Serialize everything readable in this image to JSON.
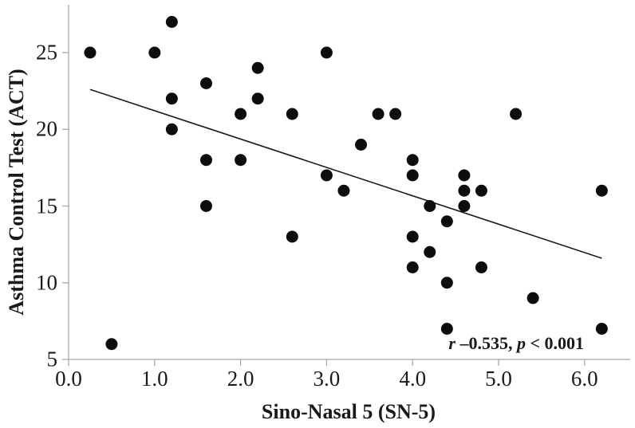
{
  "chart_data": {
    "type": "scatter",
    "title": "",
    "xlabel": "Sino-Nasal 5 (SN-5)",
    "ylabel": "Asthma Control Test (ACT)",
    "xlim": [
      0,
      6.5
    ],
    "ylim": [
      5,
      28
    ],
    "grid": false,
    "legend": "none",
    "x_ticks": [
      {
        "value": 0,
        "label": "0.0"
      },
      {
        "value": 1,
        "label": "1.0"
      },
      {
        "value": 2,
        "label": "2.0"
      },
      {
        "value": 3,
        "label": "3.0"
      },
      {
        "value": 4,
        "label": "4.0"
      },
      {
        "value": 5,
        "label": "5.0"
      },
      {
        "value": 6,
        "label": "6.0"
      }
    ],
    "y_ticks": [
      {
        "value": 5,
        "label": "5"
      },
      {
        "value": 10,
        "label": "10"
      },
      {
        "value": 15,
        "label": "15"
      },
      {
        "value": 20,
        "label": "20"
      },
      {
        "value": 25,
        "label": "25"
      }
    ],
    "points": [
      [
        0.25,
        25
      ],
      [
        0.5,
        6
      ],
      [
        1.0,
        25
      ],
      [
        1.2,
        27
      ],
      [
        1.2,
        22
      ],
      [
        1.2,
        20
      ],
      [
        1.6,
        23
      ],
      [
        1.6,
        18
      ],
      [
        1.6,
        15
      ],
      [
        2.0,
        21
      ],
      [
        2.0,
        18
      ],
      [
        2.2,
        24
      ],
      [
        2.2,
        22
      ],
      [
        2.6,
        21
      ],
      [
        2.6,
        13
      ],
      [
        3.0,
        25
      ],
      [
        3.0,
        17
      ],
      [
        3.2,
        16
      ],
      [
        3.4,
        19
      ],
      [
        3.6,
        21
      ],
      [
        3.8,
        21
      ],
      [
        4.0,
        18
      ],
      [
        4.0,
        17
      ],
      [
        4.0,
        13
      ],
      [
        4.0,
        11
      ],
      [
        4.2,
        15
      ],
      [
        4.2,
        12
      ],
      [
        4.4,
        14
      ],
      [
        4.4,
        10
      ],
      [
        4.4,
        7
      ],
      [
        4.6,
        17
      ],
      [
        4.6,
        16
      ],
      [
        4.6,
        15
      ],
      [
        4.8,
        16
      ],
      [
        4.8,
        11
      ],
      [
        5.2,
        21
      ],
      [
        5.4,
        9
      ],
      [
        6.2,
        16
      ],
      [
        6.2,
        7
      ]
    ],
    "trendline": {
      "x1": 0.25,
      "y1": 22.6,
      "x2": 6.2,
      "y2": 11.6
    },
    "annotation": {
      "r_symbol": "r",
      "r_value": " –0.535, ",
      "p_symbol": "p",
      "p_value": " < 0.001"
    },
    "colors": {
      "point": "#0d0d0d",
      "trendline": "#1a1a1a",
      "axis": "#a8a8a8",
      "text": "#1a1a1a"
    }
  }
}
